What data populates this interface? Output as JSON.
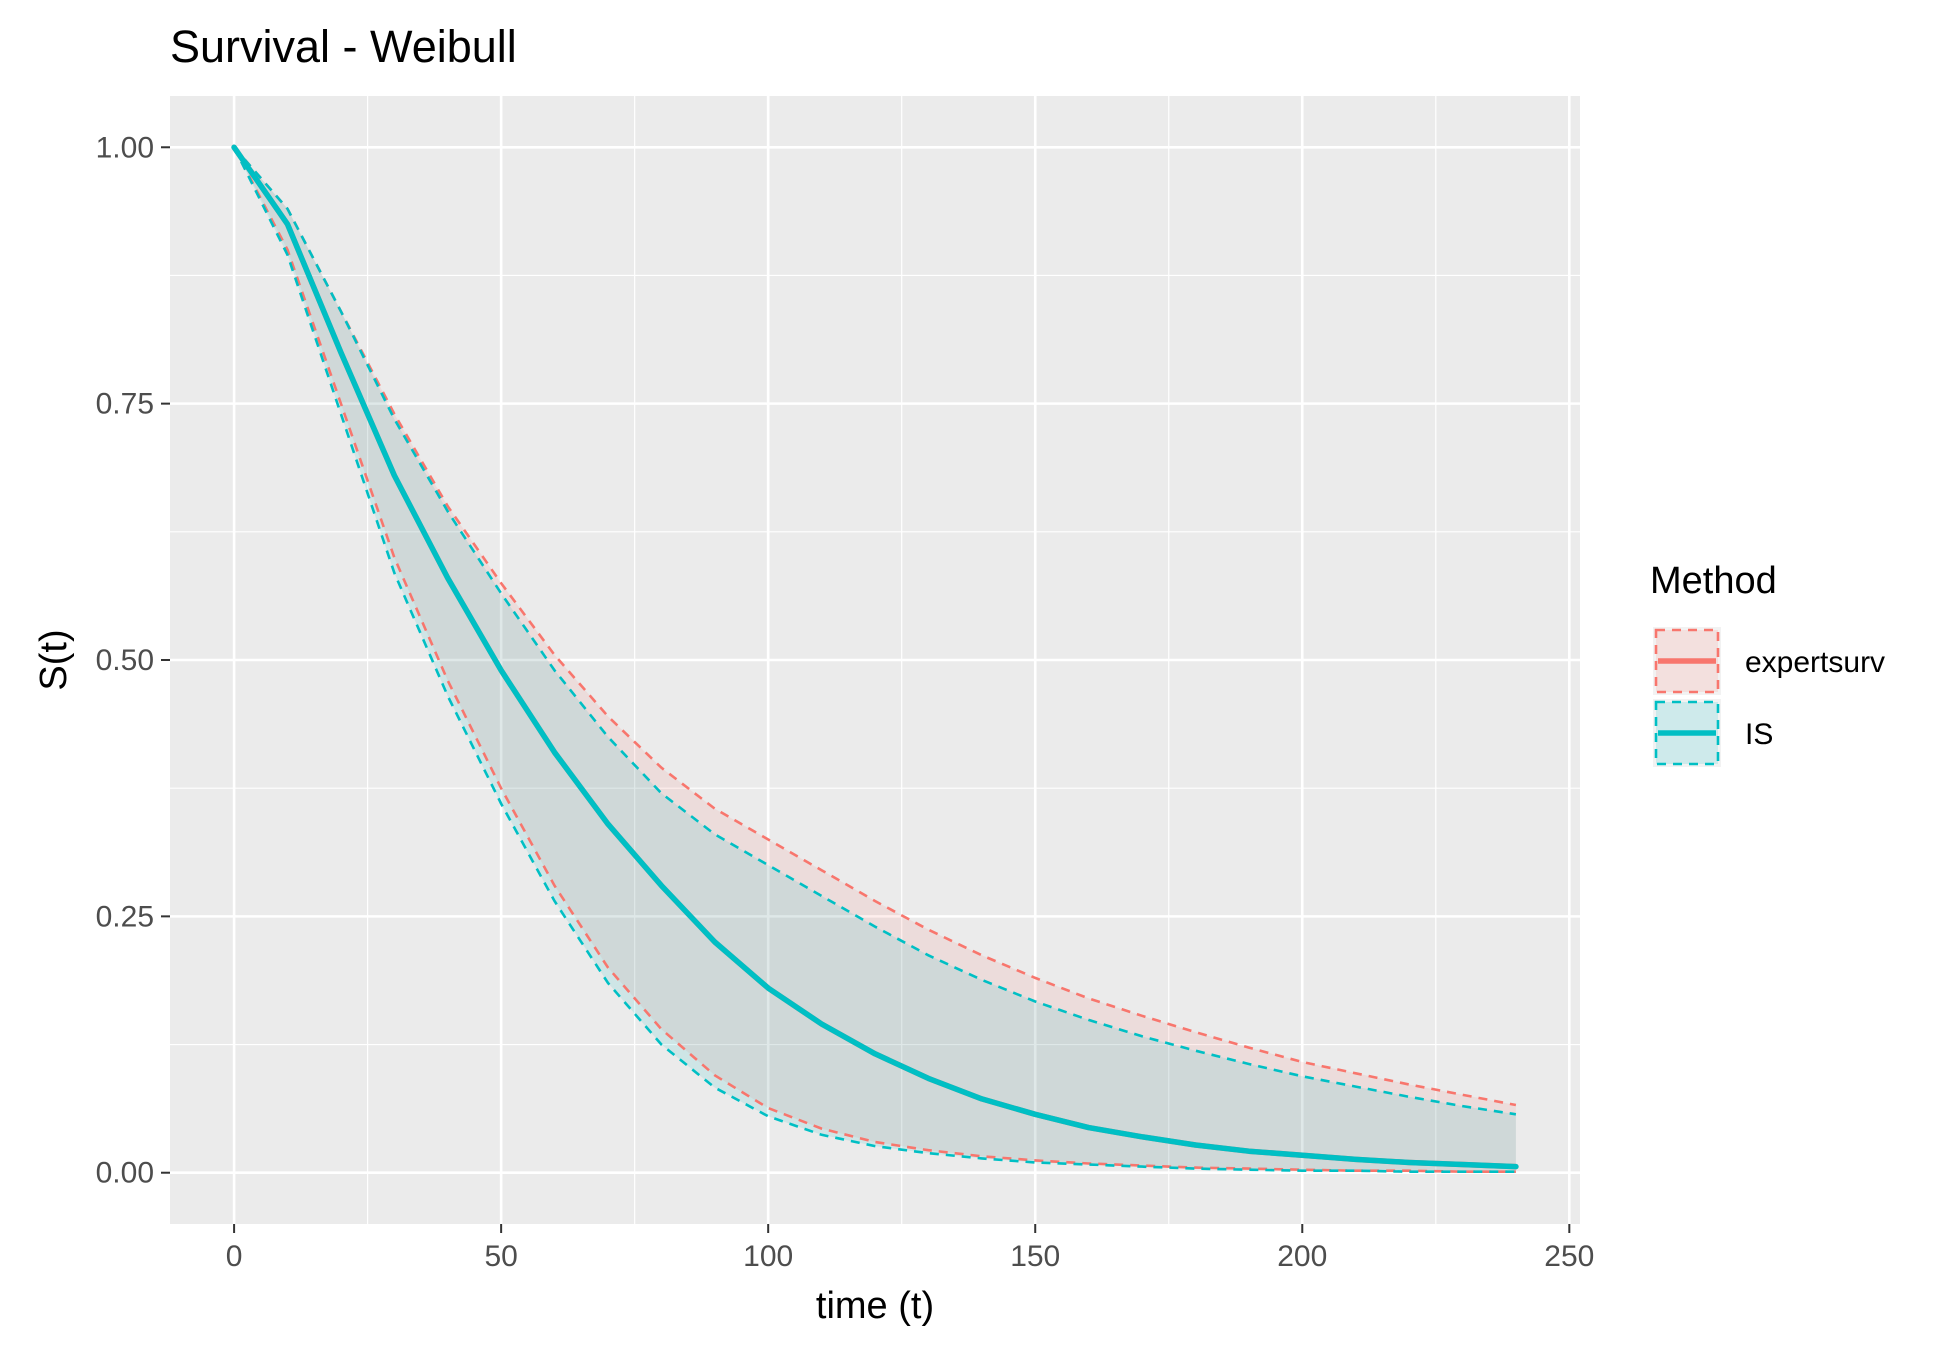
{
  "chart_data": {
    "type": "line",
    "title": "Survival - Weibull",
    "xlabel": "time (t)",
    "ylabel": "S(t)",
    "xlim": [
      -12,
      252
    ],
    "ylim": [
      -0.05,
      1.05
    ],
    "x_ticks": [
      0,
      50,
      100,
      150,
      200,
      250
    ],
    "x_tick_labels": [
      "0",
      "50",
      "100",
      "150",
      "200",
      "250"
    ],
    "y_ticks": [
      0,
      0.25,
      0.5,
      0.75,
      1.0
    ],
    "y_tick_labels": [
      "0.00",
      "0.25",
      "0.50",
      "0.75",
      "1.00"
    ],
    "grid": true,
    "background": "#ebebeb",
    "legend": {
      "title": "Method",
      "position": "right"
    },
    "x": [
      0,
      10,
      20,
      30,
      40,
      50,
      60,
      70,
      80,
      90,
      100,
      110,
      120,
      130,
      140,
      150,
      160,
      170,
      180,
      190,
      200,
      210,
      220,
      230,
      240
    ],
    "series": [
      {
        "name": "expertsurv",
        "color": "#f8766d",
        "estimate": [
          1.0,
          0.925,
          0.8,
          0.68,
          0.58,
          0.49,
          0.41,
          0.34,
          0.28,
          0.225,
          0.18,
          0.145,
          0.116,
          0.092,
          0.072,
          0.057,
          0.044,
          0.035,
          0.027,
          0.021,
          0.017,
          0.013,
          0.01,
          0.008,
          0.006
        ],
        "upper": [
          1.0,
          0.94,
          0.84,
          0.74,
          0.65,
          0.575,
          0.505,
          0.445,
          0.395,
          0.355,
          0.325,
          0.295,
          0.265,
          0.237,
          0.212,
          0.19,
          0.17,
          0.153,
          0.137,
          0.122,
          0.108,
          0.097,
          0.086,
          0.076,
          0.066
        ],
        "lower": [
          1.0,
          0.9,
          0.75,
          0.6,
          0.48,
          0.375,
          0.28,
          0.2,
          0.14,
          0.095,
          0.063,
          0.043,
          0.03,
          0.022,
          0.016,
          0.012,
          0.009,
          0.007,
          0.005,
          0.004,
          0.003,
          0.002,
          0.002,
          0.001,
          0.001
        ]
      },
      {
        "name": "IS",
        "color": "#00bfc4",
        "estimate": [
          1.0,
          0.925,
          0.8,
          0.68,
          0.58,
          0.49,
          0.41,
          0.34,
          0.28,
          0.225,
          0.18,
          0.145,
          0.116,
          0.092,
          0.072,
          0.057,
          0.044,
          0.035,
          0.027,
          0.021,
          0.017,
          0.013,
          0.01,
          0.008,
          0.006
        ],
        "upper": [
          1.0,
          0.94,
          0.84,
          0.735,
          0.645,
          0.565,
          0.49,
          0.425,
          0.37,
          0.33,
          0.3,
          0.27,
          0.24,
          0.212,
          0.188,
          0.167,
          0.149,
          0.133,
          0.119,
          0.106,
          0.094,
          0.084,
          0.074,
          0.065,
          0.057
        ],
        "lower": [
          1.0,
          0.895,
          0.74,
          0.585,
          0.465,
          0.36,
          0.265,
          0.185,
          0.125,
          0.083,
          0.055,
          0.037,
          0.026,
          0.019,
          0.014,
          0.01,
          0.008,
          0.006,
          0.004,
          0.003,
          0.002,
          0.002,
          0.001,
          0.001,
          0.001
        ]
      }
    ]
  }
}
